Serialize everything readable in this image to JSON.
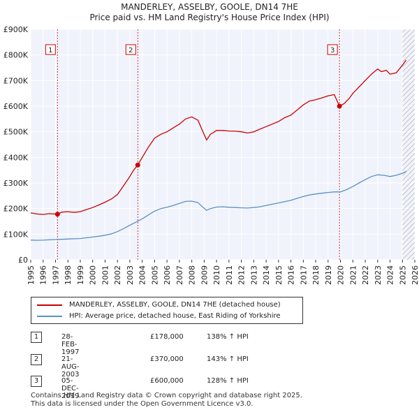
{
  "title": "MANDERLEY, ASSELBY, GOOLE, DN14 7HE",
  "subtitle": "Price paid vs. HM Land Registry's House Price Index (HPI)",
  "chart_data": {
    "type": "line",
    "title": "MANDERLEY, ASSELBY, GOOLE, DN14 7HE",
    "subtitle": "Price paid vs. HM Land Registry's House Price Index (HPI)",
    "xlabel": "",
    "ylabel": "",
    "xlim": [
      1995,
      2026
    ],
    "ylim": [
      0,
      900000
    ],
    "x_ticks": [
      "1995",
      "1996",
      "1997",
      "1998",
      "1999",
      "2000",
      "2001",
      "2002",
      "2003",
      "2004",
      "2005",
      "2006",
      "2007",
      "2008",
      "2009",
      "2010",
      "2011",
      "2012",
      "2013",
      "2014",
      "2015",
      "2016",
      "2017",
      "2018",
      "2019",
      "2020",
      "2021",
      "2022",
      "2023",
      "2024",
      "2025",
      "2026"
    ],
    "y_ticks": [
      {
        "value": 0,
        "label": "£0"
      },
      {
        "value": 100000,
        "label": "£100K"
      },
      {
        "value": 200000,
        "label": "£200K"
      },
      {
        "value": 300000,
        "label": "£300K"
      },
      {
        "value": 400000,
        "label": "£400K"
      },
      {
        "value": 500000,
        "label": "£500K"
      },
      {
        "value": 600000,
        "label": "£600K"
      },
      {
        "value": 700000,
        "label": "£700K"
      },
      {
        "value": 800000,
        "label": "£800K"
      },
      {
        "value": 900000,
        "label": "£900K"
      }
    ],
    "grid": true,
    "series": [
      {
        "name": "MANDERLEY, ASSELBY, GOOLE, DN14 7HE (detached house)",
        "color": "#cc0000",
        "points": [
          [
            1995.0,
            183000
          ],
          [
            1995.5,
            179000
          ],
          [
            1996.0,
            177000
          ],
          [
            1996.5,
            180000
          ],
          [
            1997.16,
            178000
          ],
          [
            1997.5,
            186000
          ],
          [
            1998.0,
            188000
          ],
          [
            1998.5,
            185000
          ],
          [
            1999.0,
            188000
          ],
          [
            1999.5,
            196000
          ],
          [
            2000.0,
            204000
          ],
          [
            2000.5,
            214000
          ],
          [
            2001.0,
            225000
          ],
          [
            2001.5,
            237000
          ],
          [
            2002.0,
            255000
          ],
          [
            2002.5,
            290000
          ],
          [
            2003.0,
            325000
          ],
          [
            2003.3,
            350000
          ],
          [
            2003.64,
            370000
          ],
          [
            2004.0,
            400000
          ],
          [
            2004.5,
            440000
          ],
          [
            2005.0,
            475000
          ],
          [
            2005.5,
            490000
          ],
          [
            2006.0,
            500000
          ],
          [
            2006.5,
            515000
          ],
          [
            2007.0,
            530000
          ],
          [
            2007.5,
            550000
          ],
          [
            2008.0,
            558000
          ],
          [
            2008.5,
            545000
          ],
          [
            2008.9,
            500000
          ],
          [
            2009.2,
            468000
          ],
          [
            2009.5,
            490000
          ],
          [
            2010.0,
            505000
          ],
          [
            2010.5,
            505000
          ],
          [
            2011.0,
            503000
          ],
          [
            2011.5,
            502000
          ],
          [
            2012.0,
            500000
          ],
          [
            2012.5,
            495000
          ],
          [
            2013.0,
            500000
          ],
          [
            2013.5,
            510000
          ],
          [
            2014.0,
            520000
          ],
          [
            2014.5,
            530000
          ],
          [
            2015.0,
            540000
          ],
          [
            2015.5,
            555000
          ],
          [
            2016.0,
            565000
          ],
          [
            2016.5,
            585000
          ],
          [
            2017.0,
            605000
          ],
          [
            2017.5,
            620000
          ],
          [
            2018.0,
            625000
          ],
          [
            2018.5,
            632000
          ],
          [
            2019.0,
            640000
          ],
          [
            2019.5,
            645000
          ],
          [
            2019.92,
            600000
          ],
          [
            2020.3,
            610000
          ],
          [
            2020.7,
            630000
          ],
          [
            2021.0,
            650000
          ],
          [
            2021.5,
            675000
          ],
          [
            2022.0,
            700000
          ],
          [
            2022.5,
            725000
          ],
          [
            2023.0,
            745000
          ],
          [
            2023.3,
            735000
          ],
          [
            2023.7,
            740000
          ],
          [
            2024.0,
            725000
          ],
          [
            2024.5,
            730000
          ],
          [
            2025.0,
            760000
          ],
          [
            2025.3,
            780000
          ]
        ]
      },
      {
        "name": "HPI: Average price, detached house, East Riding of Yorkshire",
        "color": "#5b8fc7",
        "points": [
          [
            1995.0,
            77000
          ],
          [
            1995.5,
            76000
          ],
          [
            1996.0,
            76500
          ],
          [
            1996.5,
            78000
          ],
          [
            1997.0,
            79000
          ],
          [
            1997.5,
            80000
          ],
          [
            1998.0,
            81000
          ],
          [
            1998.5,
            82000
          ],
          [
            1999.0,
            83000
          ],
          [
            1999.5,
            86000
          ],
          [
            2000.0,
            89000
          ],
          [
            2000.5,
            92000
          ],
          [
            2001.0,
            96000
          ],
          [
            2001.5,
            101000
          ],
          [
            2002.0,
            110000
          ],
          [
            2002.5,
            122000
          ],
          [
            2003.0,
            135000
          ],
          [
            2003.5,
            147000
          ],
          [
            2004.0,
            160000
          ],
          [
            2004.5,
            175000
          ],
          [
            2005.0,
            190000
          ],
          [
            2005.5,
            200000
          ],
          [
            2006.0,
            205000
          ],
          [
            2006.5,
            212000
          ],
          [
            2007.0,
            220000
          ],
          [
            2007.5,
            228000
          ],
          [
            2008.0,
            229000
          ],
          [
            2008.5,
            223000
          ],
          [
            2008.9,
            205000
          ],
          [
            2009.2,
            193000
          ],
          [
            2009.5,
            200000
          ],
          [
            2010.0,
            206000
          ],
          [
            2010.5,
            207000
          ],
          [
            2011.0,
            205000
          ],
          [
            2011.5,
            204000
          ],
          [
            2012.0,
            203000
          ],
          [
            2012.5,
            202000
          ],
          [
            2013.0,
            204000
          ],
          [
            2013.5,
            207000
          ],
          [
            2014.0,
            212000
          ],
          [
            2014.5,
            217000
          ],
          [
            2015.0,
            222000
          ],
          [
            2015.5,
            227000
          ],
          [
            2016.0,
            232000
          ],
          [
            2016.5,
            240000
          ],
          [
            2017.0,
            247000
          ],
          [
            2017.5,
            253000
          ],
          [
            2018.0,
            257000
          ],
          [
            2018.5,
            260000
          ],
          [
            2019.0,
            263000
          ],
          [
            2019.5,
            265000
          ],
          [
            2020.0,
            265000
          ],
          [
            2020.5,
            274000
          ],
          [
            2021.0,
            286000
          ],
          [
            2021.5,
            300000
          ],
          [
            2022.0,
            313000
          ],
          [
            2022.5,
            325000
          ],
          [
            2023.0,
            332000
          ],
          [
            2023.5,
            330000
          ],
          [
            2024.0,
            325000
          ],
          [
            2024.5,
            330000
          ],
          [
            2025.0,
            338000
          ],
          [
            2025.3,
            345000
          ]
        ]
      }
    ],
    "sales": [
      {
        "label": "1",
        "x": 1997.16,
        "value": 178000
      },
      {
        "label": "2",
        "x": 2003.64,
        "value": 370000
      },
      {
        "label": "3",
        "x": 2019.92,
        "value": 600000
      }
    ],
    "hatch_from": 2025.0
  },
  "legend": {
    "property": "MANDERLEY, ASSELBY, GOOLE, DN14 7HE (detached house)",
    "hpi": "HPI: Average price, detached house, East Riding of Yorkshire",
    "property_color": "#cc0000",
    "hpi_color": "#5b8fc7"
  },
  "transactions": [
    {
      "num": "1",
      "date": "28-FEB-1997",
      "price": "£178,000",
      "hpi": "138% ↑ HPI"
    },
    {
      "num": "2",
      "date": "21-AUG-2003",
      "price": "£370,000",
      "hpi": "143% ↑ HPI"
    },
    {
      "num": "3",
      "date": "05-DEC-2019",
      "price": "£600,000",
      "hpi": "128% ↑ HPI"
    }
  ],
  "footer": {
    "line1": "Contains HM Land Registry data © Crown copyright and database right 2025.",
    "line2": "This data is licensed under the Open Government Licence v3.0."
  }
}
